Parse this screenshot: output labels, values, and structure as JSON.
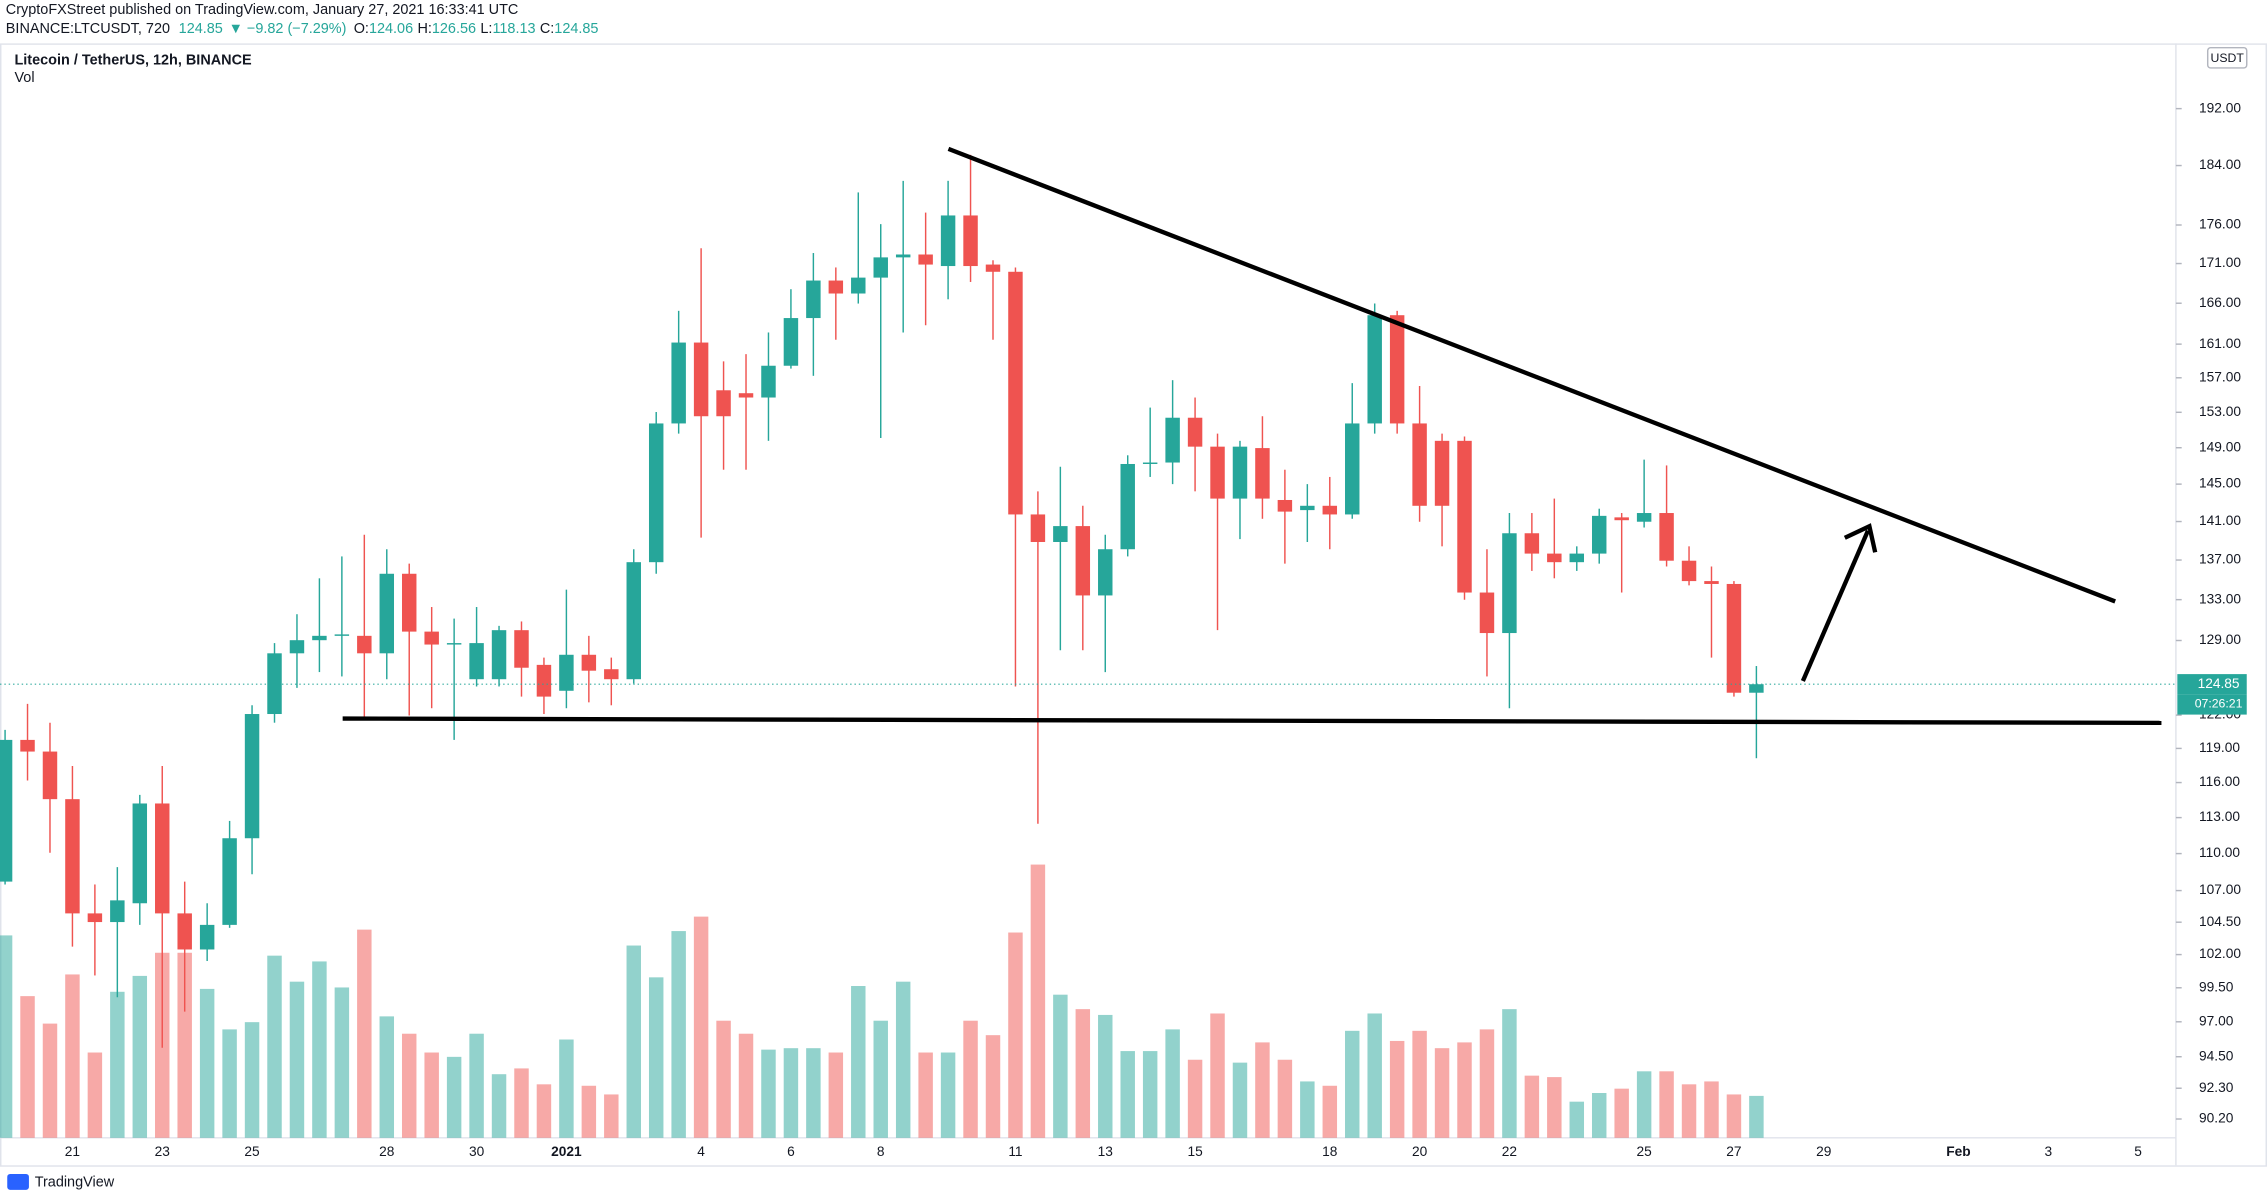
{
  "header": {
    "publisher": "CryptoFXStreet published on TradingView.com, January 27, 2021 16:33:41 UTC",
    "symbol": "BINANCE:LTCUSDT, 720",
    "change": "▼ −9.82 (−7.29%)",
    "ohlc_labels": [
      "O:",
      "H:",
      "L:",
      "C:"
    ]
  },
  "footer": "TradingView",
  "chart_data": {
    "type": "candlestick",
    "title": "Litecoin / TetherUS, 12h, BINANCE",
    "currency": "USDT",
    "volume_label": "Vol",
    "countdown": "07:26:21",
    "log_scale": true,
    "grid": false,
    "up_color": "#26a69a",
    "down_color": "#ef5350",
    "categories": [
      null,
      null,
      null,
      "21",
      null,
      null,
      null,
      "23",
      null,
      null,
      null,
      "25",
      null,
      null,
      null,
      null,
      null,
      "28",
      null,
      null,
      null,
      "30",
      null,
      null,
      null,
      "2021",
      null,
      null,
      null,
      null,
      null,
      "4",
      null,
      null,
      null,
      "6",
      null,
      null,
      null,
      "8",
      null,
      null,
      null,
      null,
      null,
      "11",
      null,
      null,
      null,
      "13",
      null,
      null,
      null,
      "15",
      null,
      null,
      null,
      null,
      null,
      "18",
      null,
      null,
      null,
      "20",
      null,
      null,
      null,
      "22",
      null,
      null,
      null,
      null,
      null,
      "25",
      null,
      null,
      null,
      "27",
      null,
      null,
      null,
      "29",
      null,
      null,
      null,
      null,
      null,
      "Feb",
      null,
      null,
      null,
      "3",
      null,
      null,
      null,
      "5",
      null
    ],
    "open": [
      107.72,
      119.76,
      118.72,
      114.57,
      105.19,
      104.51,
      105.99,
      114.2,
      105.19,
      102.39,
      104.29,
      111.27,
      122.1,
      127.77,
      129.03,
      129.45,
      129.45,
      127.77,
      135.6,
      129.86,
      128.61,
      125.32,
      125.32,
      130.0,
      126.67,
      124.24,
      127.63,
      126.26,
      125.32,
      136.78,
      151.73,
      161.19,
      155.54,
      155.2,
      154.7,
      158.42,
      164.17,
      168.84,
      167.21,
      169.21,
      171.79,
      172.16,
      170.68,
      177.26,
      170.87,
      169.95,
      141.75,
      138.86,
      140.52,
      133.42,
      138.11,
      147.2,
      147.36,
      152.38,
      149.12,
      143.44,
      148.96,
      143.29,
      142.21,
      142.67,
      141.75,
      151.73,
      164.52,
      151.73,
      149.77,
      149.77,
      133.71,
      129.72,
      139.77,
      137.66,
      136.78,
      137.66,
      141.44,
      140.98,
      141.9,
      136.93,
      134.86,
      134.57,
      124.06,
      null,
      null,
      null,
      null,
      null,
      null,
      null,
      null,
      null,
      null,
      null,
      null,
      null,
      null,
      null,
      null,
      null,
      null
    ],
    "high": [
      120.66,
      123.03,
      121.31,
      117.44,
      107.49,
      108.89,
      114.94,
      117.44,
      107.72,
      105.99,
      112.72,
      122.9,
      128.75,
      131.56,
      135.14,
      137.37,
      139.61,
      138.11,
      136.63,
      132.27,
      131.13,
      132.27,
      130.42,
      130.85,
      127.36,
      134.0,
      129.45,
      127.36,
      138.11,
      153.04,
      165.06,
      172.96,
      158.94,
      159.8,
      162.41,
      167.75,
      172.35,
      170.5,
      180.34,
      176.11,
      181.91,
      177.64,
      181.91,
      185.48,
      171.42,
      170.5,
      144.22,
      146.89,
      142.67,
      139.61,
      148.16,
      153.54,
      156.72,
      154.7,
      150.58,
      149.77,
      152.55,
      146.57,
      145.0,
      145.78,
      156.38,
      165.96,
      165.06,
      156.04,
      150.58,
      150.25,
      138.11,
      141.9,
      141.9,
      143.44,
      138.41,
      142.36,
      141.9,
      147.68,
      147.04,
      138.41,
      136.34,
      134.86,
      126.56,
      null,
      null,
      null,
      null,
      null,
      null,
      null,
      null,
      null,
      null,
      null,
      null,
      null,
      null,
      null,
      null,
      null,
      null
    ],
    "low": [
      107.49,
      116.18,
      110.07,
      102.61,
      100.42,
      98.8,
      104.29,
      95.14,
      97.74,
      101.51,
      104.06,
      108.31,
      121.31,
      124.51,
      125.99,
      125.58,
      121.57,
      125.32,
      121.97,
      122.63,
      119.76,
      124.64,
      124.64,
      123.7,
      122.1,
      122.63,
      123.17,
      122.9,
      124.91,
      135.6,
      150.58,
      139.31,
      146.57,
      146.57,
      149.77,
      158.08,
      157.23,
      161.53,
      165.96,
      150.09,
      162.41,
      163.29,
      166.49,
      168.66,
      161.53,
      124.64,
      112.48,
      128.06,
      128.06,
      125.99,
      137.37,
      145.78,
      145.0,
      144.22,
      130.0,
      139.16,
      141.29,
      136.63,
      138.86,
      138.11,
      141.29,
      150.58,
      150.58,
      140.98,
      138.41,
      132.99,
      125.58,
      122.63,
      135.89,
      135.14,
      135.89,
      136.63,
      133.71,
      140.37,
      136.34,
      134.43,
      127.36,
      123.7,
      118.13,
      null,
      null,
      null,
      null,
      null,
      null,
      null,
      null,
      null,
      null,
      null,
      null,
      null,
      null,
      null,
      null,
      null,
      null
    ],
    "close": [
      119.76,
      118.72,
      114.57,
      105.19,
      104.51,
      106.22,
      114.2,
      105.19,
      102.39,
      104.29,
      111.27,
      122.1,
      127.77,
      129.03,
      129.45,
      129.59,
      127.77,
      135.6,
      129.86,
      128.61,
      128.75,
      128.75,
      130.0,
      126.4,
      123.7,
      127.63,
      126.12,
      125.32,
      136.78,
      151.73,
      161.19,
      152.55,
      152.55,
      154.7,
      158.42,
      164.17,
      168.84,
      167.21,
      169.21,
      171.79,
      172.16,
      170.87,
      177.26,
      170.68,
      169.95,
      141.75,
      138.86,
      140.52,
      133.42,
      138.11,
      147.2,
      147.36,
      152.38,
      149.12,
      143.44,
      149.12,
      143.44,
      142.05,
      142.67,
      141.75,
      151.73,
      164.52,
      151.73,
      142.67,
      142.67,
      133.71,
      129.72,
      139.77,
      137.66,
      136.78,
      137.66,
      141.6,
      141.14,
      141.9,
      136.93,
      134.86,
      134.57,
      124.06,
      124.85,
      null,
      null,
      null,
      null,
      null,
      null,
      null,
      null,
      null,
      null,
      null,
      null,
      null,
      null,
      null,
      null,
      null,
      null
    ],
    "volume": [
      140,
      98,
      79,
      113,
      59,
      101,
      112,
      128,
      128,
      103,
      75,
      80,
      126,
      108,
      122,
      104,
      144,
      84,
      72,
      59,
      56,
      72,
      44,
      48,
      37,
      68,
      36,
      30,
      133,
      111,
      143,
      153,
      81,
      72,
      61,
      62,
      62,
      59,
      105,
      81,
      108,
      59,
      59,
      81,
      71,
      142,
      189,
      99,
      89,
      85,
      60,
      60,
      75,
      54,
      86,
      52,
      66,
      54,
      39,
      36,
      74,
      86,
      67,
      74,
      62,
      66,
      75,
      89,
      43,
      42,
      25,
      31,
      34,
      46,
      46,
      37,
      39,
      30,
      29,
      null,
      null,
      null,
      null,
      null,
      null,
      null,
      null,
      null,
      null,
      null,
      null,
      null,
      null,
      null,
      null,
      null,
      null
    ],
    "ylim": [
      88.94,
      201.6
    ],
    "yticks": [
      {
        "value": 192,
        "label": "192.00"
      },
      {
        "value": 184,
        "label": "184.00"
      },
      {
        "value": 176,
        "label": "176.00"
      },
      {
        "value": 171,
        "label": "171.00"
      },
      {
        "value": 166,
        "label": "166.00"
      },
      {
        "value": 161,
        "label": "161.00"
      },
      {
        "value": 157,
        "label": "157.00"
      },
      {
        "value": 153,
        "label": "153.00"
      },
      {
        "value": 149,
        "label": "149.00"
      },
      {
        "value": 145,
        "label": "145.00"
      },
      {
        "value": 141,
        "label": "141.00"
      },
      {
        "value": 137,
        "label": "137.00"
      },
      {
        "value": 133,
        "label": "133.00"
      },
      {
        "value": 129,
        "label": "129.00"
      },
      {
        "value": 122,
        "label": "122.00"
      },
      {
        "value": 119,
        "label": "119.00"
      },
      {
        "value": 116,
        "label": "116.00"
      },
      {
        "value": 113,
        "label": "113.00"
      },
      {
        "value": 110,
        "label": "110.00"
      },
      {
        "value": 107,
        "label": "107.00"
      },
      {
        "value": 104.5,
        "label": "104.50"
      },
      {
        "value": 102,
        "label": "102.00"
      },
      {
        "value": 99.5,
        "label": "99.50"
      },
      {
        "value": 97,
        "label": "97.00"
      },
      {
        "value": 94.5,
        "label": "94.50"
      },
      {
        "value": 92.3,
        "label": "92.30"
      },
      {
        "value": 90.2,
        "label": "90.20"
      }
    ]
  }
}
